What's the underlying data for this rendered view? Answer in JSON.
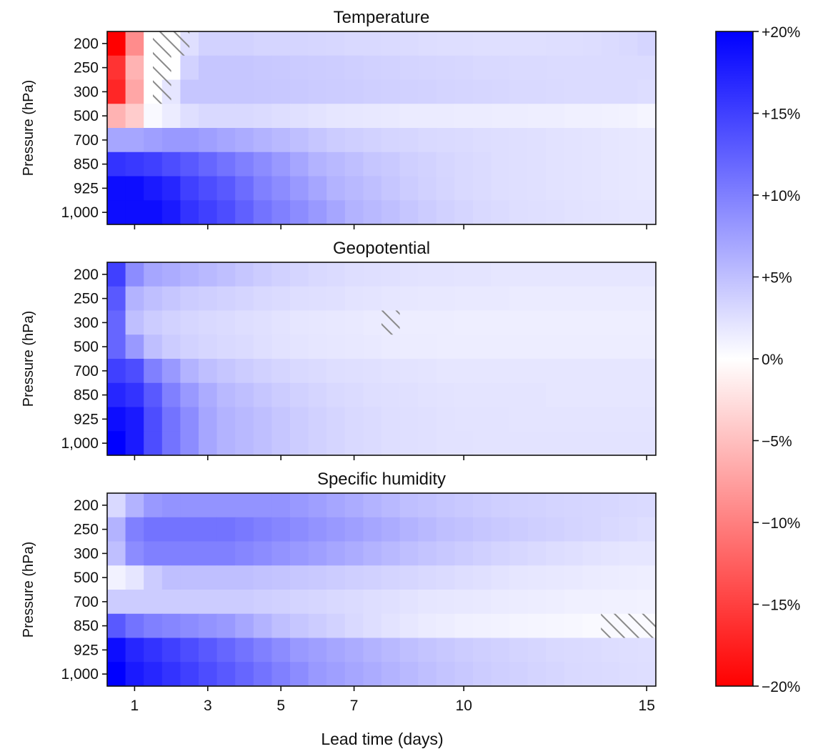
{
  "chart_data": {
    "type": "heatmap",
    "x_label": "Lead time (days)",
    "y_label": "Pressure (hPa)",
    "x_ticks": [
      1,
      3,
      5,
      7,
      10,
      15
    ],
    "x_range": [
      0.25,
      15.25
    ],
    "x_step_days": 0.5,
    "levels": [
      "200",
      "250",
      "300",
      "500",
      "700",
      "850",
      "925",
      "1,000"
    ],
    "colorbar": {
      "range": [
        -20,
        20
      ],
      "ticks": [
        20,
        15,
        10,
        5,
        0,
        -5,
        -10,
        -15,
        -20
      ],
      "tick_labels": [
        "+20%",
        "+15%",
        "+10%",
        "+5%",
        "0%",
        "−5%",
        "−10%",
        "−15%",
        "−20%"
      ],
      "colors": {
        "negative": "#ff0000",
        "zero": "#ffffff",
        "positive": "#0000ff"
      }
    },
    "panels": [
      {
        "title": "Temperature",
        "rows": [
          {
            "level": "200",
            "values": [
              -20,
              -9,
              0,
              0,
              2.5,
              3.5,
              3.5,
              3.5,
              3.3,
              3.3,
              3.3,
              3.2,
              3.1,
              3.0,
              3.0,
              2.9,
              2.8,
              2.7,
              2.6,
              2.6,
              2.5,
              2.5,
              2.5,
              2.5,
              2.6,
              2.6,
              2.7,
              2.8,
              3.0,
              3.3
            ]
          },
          {
            "level": "250",
            "values": [
              -16,
              -6,
              0,
              0,
              3.5,
              4.5,
              4.5,
              4.5,
              4.3,
              4.2,
              4.1,
              4.0,
              3.9,
              3.8,
              3.6,
              3.5,
              3.4,
              3.3,
              3.2,
              3.1,
              3.0,
              3.0,
              2.9,
              2.9,
              2.8,
              2.8,
              2.8,
              2.8,
              2.8,
              2.8
            ]
          },
          {
            "level": "300",
            "values": [
              -17,
              -7,
              0,
              2.0,
              4.5,
              4.5,
              4.5,
              4.5,
              4.4,
              4.3,
              4.2,
              4.1,
              4.0,
              3.9,
              3.8,
              3.7,
              3.6,
              3.5,
              3.4,
              3.3,
              3.2,
              3.1,
              3.0,
              3.0,
              2.9,
              2.8,
              2.8,
              2.8,
              2.8,
              2.7
            ]
          },
          {
            "level": "500",
            "values": [
              -6,
              -4,
              0.5,
              1.5,
              2.5,
              3.0,
              3.0,
              3.0,
              2.8,
              2.6,
              2.4,
              2.2,
              2.0,
              1.9,
              1.8,
              1.7,
              1.6,
              1.6,
              1.6,
              1.5,
              1.5,
              1.4,
              1.4,
              1.3,
              1.3,
              1.2,
              1.2,
              1.1,
              1.0,
              0.8
            ]
          },
          {
            "level": "700",
            "values": [
              7,
              7,
              7.5,
              8,
              8,
              7.5,
              7,
              6.5,
              6,
              5.5,
              5.0,
              4.5,
              4.0,
              3.8,
              3.5,
              3.3,
              3.2,
              3.0,
              2.9,
              2.8,
              2.7,
              2.6,
              2.5,
              2.4,
              2.3,
              2.2,
              2.1,
              2.0,
              1.9,
              1.8
            ]
          },
          {
            "level": "850",
            "values": [
              16,
              15.5,
              15,
              14,
              13,
              12,
              11,
              10,
              9,
              8,
              7,
              6,
              5.5,
              5,
              4.5,
              4.2,
              3.8,
              3.5,
              3.2,
              3.0,
              2.8,
              2.6,
              2.5,
              2.4,
              2.3,
              2.2,
              2.1,
              2.0,
              1.9,
              1.8
            ]
          },
          {
            "level": "925",
            "values": [
              19,
              19,
              18,
              17,
              15,
              14,
              13,
              11.5,
              10,
              9,
              8,
              7,
              6,
              5.5,
              5,
              4.5,
              4,
              3.6,
              3.3,
              3.0,
              2.8,
              2.6,
              2.5,
              2.4,
              2.3,
              2.2,
              2.1,
              2.0,
              1.9,
              1.8
            ]
          },
          {
            "level": "1,000",
            "values": [
              19,
              19,
              19,
              18,
              16,
              15,
              14,
              12.5,
              11,
              10,
              9,
              8,
              7,
              6,
              5.5,
              5,
              4.5,
              4,
              3.6,
              3.3,
              3.0,
              2.8,
              2.6,
              2.5,
              2.4,
              2.3,
              2.2,
              2.1,
              2.0,
              2.0
            ]
          }
        ],
        "hatched": [
          {
            "level": "200",
            "x": [
              1.5,
              2.5
            ]
          },
          {
            "level": "250",
            "x": [
              1.5,
              2.0
            ]
          },
          {
            "level": "300",
            "x": [
              1.5,
              2.0
            ]
          }
        ]
      },
      {
        "title": "Geopotential",
        "rows": [
          {
            "level": "200",
            "values": [
              15,
              9,
              7,
              6.5,
              6,
              5.5,
              5,
              4.5,
              4,
              3.6,
              3.3,
              3.0,
              2.8,
              2.6,
              2.5,
              2.4,
              2.3,
              2.2,
              2.2,
              2.1,
              2.1,
              2.0,
              2.0,
              2.0,
              2.0,
              2.0,
              2.0,
              2.0,
              2.0,
              2.0
            ]
          },
          {
            "level": "250",
            "values": [
              13,
              6,
              5,
              4.5,
              4,
              3.8,
              3.5,
              3.3,
              3.0,
              2.8,
              2.6,
              2.5,
              2.4,
              2.2,
              2.1,
              2.0,
              1.9,
              1.8,
              1.8,
              1.7,
              1.7,
              1.7,
              1.6,
              1.6,
              1.6,
              1.6,
              1.6,
              1.6,
              1.6,
              1.6
            ]
          },
          {
            "level": "300",
            "values": [
              12,
              5,
              4,
              3.5,
              3.2,
              3.0,
              2.8,
              2.6,
              2.4,
              2.2,
              2.0,
              1.9,
              1.8,
              1.7,
              1.6,
              1.5,
              1.4,
              1.4,
              1.4,
              1.3,
              1.3,
              1.3,
              1.3,
              1.3,
              1.3,
              1.3,
              1.3,
              1.3,
              1.3,
              1.3
            ]
          },
          {
            "level": "500",
            "values": [
              12,
              8,
              5,
              4,
              3.5,
              3.2,
              3.0,
              2.8,
              2.5,
              2.3,
              2.1,
              2.0,
              1.9,
              1.8,
              1.7,
              1.6,
              1.5,
              1.5,
              1.4,
              1.4,
              1.4,
              1.4,
              1.4,
              1.4,
              1.4,
              1.4,
              1.4,
              1.4,
              1.4,
              1.4
            ]
          },
          {
            "level": "700",
            "values": [
              15,
              14,
              10,
              8,
              6,
              5,
              4.5,
              4,
              3.6,
              3.3,
              3.0,
              2.8,
              2.6,
              2.5,
              2.4,
              2.3,
              2.2,
              2.1,
              2.0,
              2.0,
              2.0,
              2.0,
              2.0,
              2.0,
              2.0,
              2.0,
              2.0,
              2.0,
              2.0,
              2.0
            ]
          },
          {
            "level": "850",
            "values": [
              17,
              16,
              13,
              10,
              8,
              6.5,
              5.5,
              5,
              4.5,
              4,
              3.6,
              3.3,
              3.0,
              2.8,
              2.6,
              2.5,
              2.4,
              2.3,
              2.2,
              2.1,
              2.1,
              2.1,
              2.1,
              2.1,
              2.0,
              2.0,
              2.0,
              2.0,
              2.0,
              2.0
            ]
          },
          {
            "level": "925",
            "values": [
              19,
              18,
              14,
              11,
              9,
              7,
              6,
              5.5,
              5,
              4.5,
              4,
              3.6,
              3.3,
              3.0,
              2.8,
              2.6,
              2.5,
              2.4,
              2.3,
              2.2,
              2.2,
              2.2,
              2.1,
              2.1,
              2.1,
              2.1,
              2.1,
              2.1,
              2.1,
              2.1
            ]
          },
          {
            "level": "1,000",
            "values": [
              20,
              18,
              14,
              11,
              9,
              7,
              6,
              5.5,
              5,
              4.5,
              4,
              3.6,
              3.3,
              3.0,
              2.8,
              2.6,
              2.5,
              2.4,
              2.3,
              2.3,
              2.2,
              2.2,
              2.2,
              2.2,
              2.2,
              2.2,
              2.2,
              2.2,
              2.2,
              2.2
            ]
          }
        ],
        "hatched": [
          {
            "level": "300",
            "x": [
              7.75,
              8.25
            ]
          }
        ]
      },
      {
        "title": "Specific humidity",
        "rows": [
          {
            "level": "200",
            "values": [
              3,
              6,
              8,
              8.5,
              8.5,
              8.5,
              8.5,
              8.5,
              8.5,
              8.5,
              8,
              7.5,
              7,
              6.5,
              6,
              5.5,
              5,
              4.8,
              4.5,
              4.2,
              4.0,
              3.8,
              3.6,
              3.5,
              3.4,
              3.3,
              3.2,
              3.1,
              3.0,
              2.9
            ]
          },
          {
            "level": "250",
            "values": [
              6,
              10,
              11,
              11,
              11,
              11,
              11,
              10.5,
              10,
              9.5,
              9,
              8.5,
              8,
              7.5,
              7,
              6.5,
              6,
              5.5,
              5,
              4.8,
              4.5,
              4.2,
              4.0,
              3.8,
              3.6,
              3.4,
              3.2,
              3.0,
              2.8,
              2.6
            ]
          },
          {
            "level": "300",
            "values": [
              5,
              9,
              10,
              10,
              10,
              10,
              10,
              9.5,
              9,
              8.5,
              8,
              7.5,
              7,
              6.5,
              6,
              5.5,
              5,
              4.6,
              4.3,
              4.0,
              3.7,
              3.4,
              3.1,
              2.9,
              2.7,
              2.5,
              2.3,
              2.1,
              2.0,
              2.0
            ]
          },
          {
            "level": "500",
            "values": [
              1,
              2,
              4,
              5,
              5,
              5,
              5,
              5,
              4.8,
              4.6,
              4.4,
              4.2,
              4.0,
              3.8,
              3.6,
              3.4,
              3.2,
              3.0,
              2.8,
              2.6,
              2.4,
              2.2,
              2.0,
              1.9,
              1.8,
              1.7,
              1.6,
              1.5,
              1.4,
              1.3
            ]
          },
          {
            "level": "700",
            "values": [
              4,
              4,
              4,
              4,
              4,
              4,
              4,
              4,
              3.8,
              3.6,
              3.4,
              3.2,
              3.0,
              2.8,
              2.6,
              2.4,
              2.2,
              2.0,
              1.9,
              1.8,
              1.7,
              1.6,
              1.5,
              1.4,
              1.3,
              1.2,
              1.2,
              1.1,
              1.1,
              1.0
            ]
          },
          {
            "level": "850",
            "values": [
              13,
              11,
              10,
              9.5,
              9,
              8.5,
              8,
              7,
              6,
              5,
              4.5,
              4,
              3.5,
              3,
              2.6,
              2.2,
              1.9,
              1.6,
              1.4,
              1.2,
              1.1,
              1.0,
              0.9,
              0.8,
              0.7,
              0.6,
              0.5,
              0.5,
              0.4,
              0.4
            ]
          },
          {
            "level": "925",
            "values": [
              19,
              17,
              16,
              15,
              14,
              13,
              12,
              11,
              10,
              9,
              8,
              7.5,
              7,
              6.5,
              6,
              5.5,
              5,
              4.6,
              4.3,
              4.0,
              3.8,
              3.6,
              3.4,
              3.2,
              3.0,
              2.9,
              2.8,
              2.7,
              2.6,
              2.5
            ]
          },
          {
            "level": "1,000",
            "values": [
              20,
              18,
              17,
              16,
              15,
              14,
              13,
              12,
              11,
              10,
              9,
              8,
              7.5,
              7,
              6.5,
              6,
              5.5,
              5,
              4.6,
              4.3,
              4.0,
              3.8,
              3.6,
              3.4,
              3.2,
              3.0,
              2.9,
              2.8,
              2.7,
              2.6
            ]
          }
        ],
        "hatched": [
          {
            "level": "850",
            "x": [
              13.75,
              15.25
            ]
          }
        ]
      }
    ]
  }
}
